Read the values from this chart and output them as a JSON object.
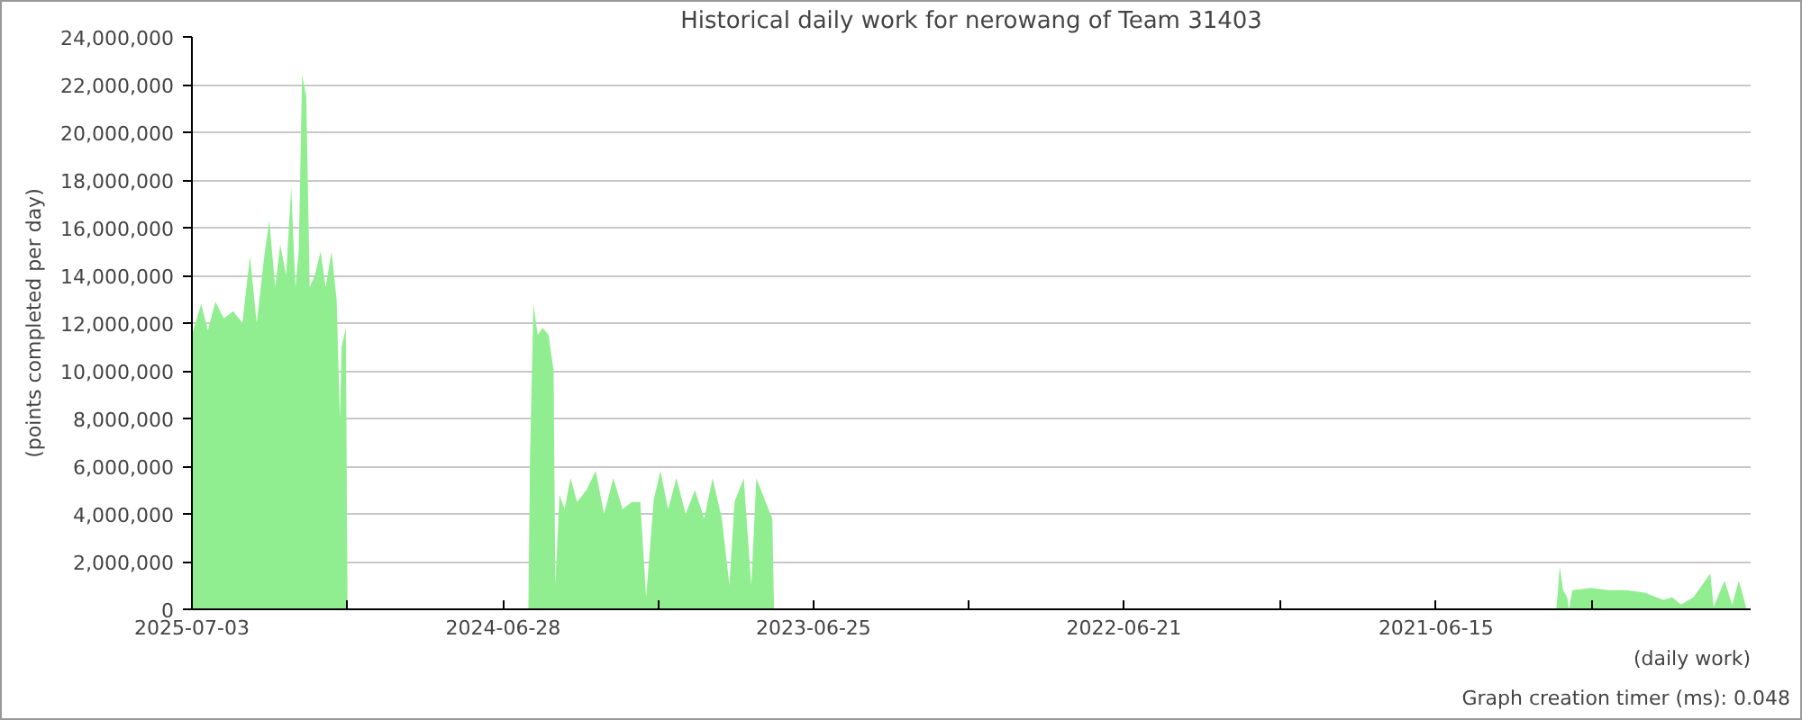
{
  "chart_data": {
    "type": "area",
    "title": "Historical daily work for nerowang of Team 31403",
    "xlabel": "(daily work)",
    "ylabel": "(points completed per day)",
    "annotations": [
      "Graph creation timer (ms): 0.048"
    ],
    "x": [
      "2025-07-03",
      "2025-06-22",
      "2025-06-14",
      "2025-06-05",
      "2025-05-26",
      "2025-05-15",
      "2025-05-04",
      "2025-04-25",
      "2025-04-17",
      "2025-04-08",
      "2025-04-02",
      "2025-03-26",
      "2025-03-20",
      "2025-03-13",
      "2025-03-07",
      "2025-03-02",
      "2025-02-26",
      "2025-02-22",
      "2025-02-17",
      "2025-02-13",
      "2025-02-07",
      "2025-01-31",
      "2025-01-25",
      "2025-01-18",
      "2025-01-12",
      "2025-01-08",
      "2025-01-06",
      "2025-01-01",
      "2024-12-30",
      "2024-05-29",
      "2024-05-27",
      "2024-05-23",
      "2024-05-18",
      "2024-05-12",
      "2024-05-05",
      "2024-04-29",
      "2024-04-27",
      "2024-04-22",
      "2024-04-16",
      "2024-04-09",
      "2024-04-01",
      "2024-03-21",
      "2024-03-10",
      "2024-02-29",
      "2024-02-18",
      "2024-02-07",
      "2024-01-27",
      "2024-01-17",
      "2024-01-10",
      "2024-01-01",
      "2023-12-24",
      "2023-12-15",
      "2023-12-05",
      "2023-11-24",
      "2023-11-13",
      "2023-11-02",
      "2023-10-23",
      "2023-10-12",
      "2023-10-03",
      "2023-09-27",
      "2023-09-16",
      "2023-09-07",
      "2023-09-01",
      "2023-08-21",
      "2023-08-13",
      "2023-08-11",
      "2021-01-23",
      "2021-01-21",
      "2021-01-19",
      "2021-01-15",
      "2021-01-10",
      "2021-01-08",
      "2021-01-04",
      "2020-12-13",
      "2020-11-22",
      "2020-10-31",
      "2020-10-10",
      "2020-09-18",
      "2020-09-07",
      "2020-08-28",
      "2020-08-13",
      "2020-07-24",
      "2020-07-20",
      "2020-07-07",
      "2020-06-28",
      "2020-06-20",
      "2020-06-13",
      "2020-06-11"
    ],
    "series": [
      {
        "color": "#90ee90",
        "values": [
          11500000,
          12800000,
          11700000,
          12900000,
          12200000,
          12500000,
          12000000,
          14800000,
          12000000,
          14800000,
          16300000,
          13500000,
          15300000,
          14000000,
          17700000,
          13500000,
          15000000,
          22400000,
          21500000,
          13500000,
          14000000,
          15000000,
          13500000,
          15000000,
          13000000,
          8000000,
          11000000,
          11800000,
          0,
          0,
          6500000,
          12800000,
          11500000,
          11800000,
          11500000,
          10000000,
          1000000,
          4800000,
          4200000,
          5500000,
          4500000,
          5000000,
          5800000,
          4000000,
          5500000,
          4200000,
          4500000,
          4500000,
          500000,
          4600000,
          5800000,
          4200000,
          5500000,
          4000000,
          5000000,
          3800000,
          5500000,
          3800000,
          1000000,
          4500000,
          5500000,
          1000000,
          5500000,
          4500000,
          3800000,
          0,
          0,
          800000,
          1800000,
          800000,
          500000,
          0,
          800000,
          900000,
          800000,
          800000,
          700000,
          400000,
          500000,
          200000,
          500000,
          1500000,
          100000,
          1200000,
          200000,
          1200000,
          300000,
          0
        ]
      }
    ],
    "xlim": [
      "2025-07-03",
      "2020-06-06"
    ],
    "xticks": [
      {
        "value": "2025-07-03",
        "label": "2025-07-03"
      },
      {
        "value": "2024-12-30",
        "label": null
      },
      {
        "value": "2024-06-28",
        "label": "2024-06-28"
      },
      {
        "value": "2023-12-26",
        "label": null
      },
      {
        "value": "2023-06-25",
        "label": "2023-06-25"
      },
      {
        "value": "2022-12-22",
        "label": null
      },
      {
        "value": "2022-06-21",
        "label": "2022-06-21"
      },
      {
        "value": "2021-12-18",
        "label": null
      },
      {
        "value": "2021-06-15",
        "label": "2021-06-15"
      },
      {
        "value": "2020-12-12",
        "label": null
      }
    ],
    "ylim": [
      0,
      24000000
    ],
    "yticks": [
      {
        "value": 0,
        "label": "0"
      },
      {
        "value": 2000000,
        "label": "2,000,000"
      },
      {
        "value": 4000000,
        "label": "4,000,000"
      },
      {
        "value": 6000000,
        "label": "6,000,000"
      },
      {
        "value": 8000000,
        "label": "8,000,000"
      },
      {
        "value": 10000000,
        "label": "10,000,000"
      },
      {
        "value": 12000000,
        "label": "12,000,000"
      },
      {
        "value": 14000000,
        "label": "14,000,000"
      },
      {
        "value": 16000000,
        "label": "16,000,000"
      },
      {
        "value": 18000000,
        "label": "18,000,000"
      },
      {
        "value": 20000000,
        "label": "20,000,000"
      },
      {
        "value": 22000000,
        "label": "22,000,000"
      },
      {
        "value": 24000000,
        "label": "24,000,000"
      }
    ],
    "grid": "y"
  }
}
